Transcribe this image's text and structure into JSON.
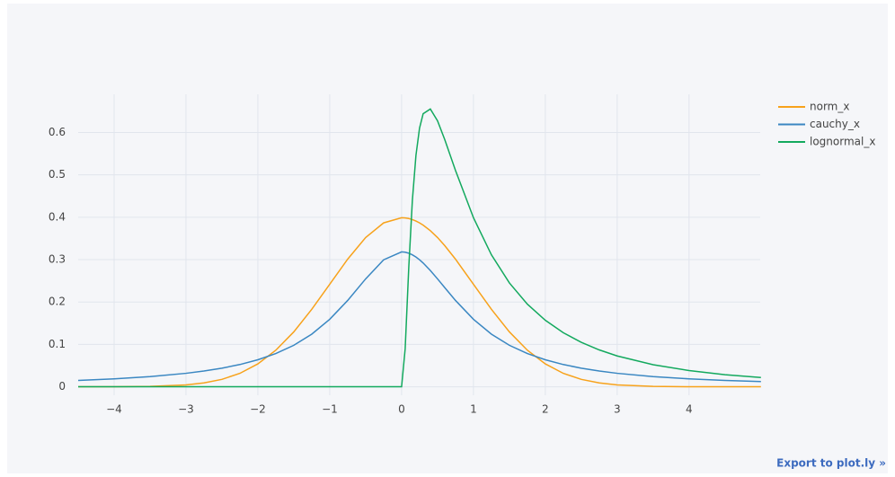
{
  "chart_data": {
    "type": "line",
    "x": [
      -4.5,
      -4,
      -3.5,
      -3,
      -2.75,
      -2.5,
      -2.25,
      -2,
      -1.75,
      -1.5,
      -1.25,
      -1,
      -0.75,
      -0.5,
      -0.25,
      0,
      0.05,
      0.1,
      0.15,
      0.2,
      0.25,
      0.3,
      0.4,
      0.5,
      0.6,
      0.75,
      1,
      1.25,
      1.5,
      1.75,
      2,
      2.25,
      2.5,
      2.75,
      3,
      3.5,
      4,
      4.5,
      5
    ],
    "series": [
      {
        "name": "norm_x",
        "color": "#f7a21b",
        "values": [
          0.0,
          0.0001,
          0.0009,
          0.0044,
          0.0091,
          0.0175,
          0.0317,
          0.054,
          0.0863,
          0.1295,
          0.1827,
          0.242,
          0.3011,
          0.3521,
          0.3867,
          0.3989,
          0.3984,
          0.397,
          0.3945,
          0.391,
          0.3867,
          0.3814,
          0.3683,
          0.3521,
          0.3332,
          0.3011,
          0.242,
          0.1827,
          0.1295,
          0.0863,
          0.054,
          0.0317,
          0.0175,
          0.0091,
          0.0044,
          0.0009,
          0.0001,
          0.0,
          0.0
        ]
      },
      {
        "name": "cauchy_x",
        "color": "#3a87c2",
        "values": [
          0.015,
          0.0187,
          0.024,
          0.0318,
          0.0372,
          0.0439,
          0.0525,
          0.0637,
          0.0784,
          0.0979,
          0.1242,
          0.1592,
          0.2037,
          0.2546,
          0.2996,
          0.3183,
          0.3175,
          0.3152,
          0.3113,
          0.3061,
          0.2996,
          0.292,
          0.2744,
          0.2546,
          0.2341,
          0.2037,
          0.1592,
          0.1242,
          0.0979,
          0.0784,
          0.0637,
          0.0525,
          0.0439,
          0.0372,
          0.0318,
          0.024,
          0.0187,
          0.015,
          0.0122
        ]
      },
      {
        "name": "lognormal_x",
        "color": "#13a95e",
        "values": [
          0,
          0,
          0,
          0,
          0,
          0,
          0,
          0,
          0,
          0,
          0,
          0,
          0,
          0,
          0,
          0,
          0.0898,
          0.2816,
          0.4398,
          0.5463,
          0.6104,
          0.6442,
          0.6554,
          0.6275,
          0.5836,
          0.5104,
          0.3989,
          0.3113,
          0.245,
          0.1949,
          0.1569,
          0.1276,
          0.1049,
          0.087,
          0.0727,
          0.052,
          0.0382,
          0.0286,
          0.0219
        ]
      }
    ],
    "xlim": [
      -4.5,
      4.99
    ],
    "ylim": [
      -0.02,
      0.69
    ],
    "xticks": [
      {
        "value": -4,
        "label": "−4"
      },
      {
        "value": -3,
        "label": "−3"
      },
      {
        "value": -2,
        "label": "−2"
      },
      {
        "value": -1,
        "label": "−1"
      },
      0,
      1,
      2,
      3,
      4
    ],
    "yticks": [
      0,
      0.1,
      0.2,
      0.3,
      0.4,
      0.5,
      0.6
    ],
    "grid": true,
    "legend": "right"
  },
  "export_link": "Export to plot.ly »"
}
